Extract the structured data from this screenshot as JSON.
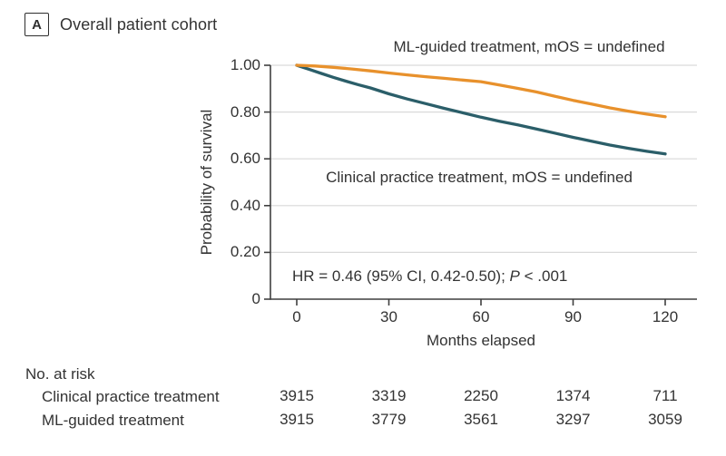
{
  "panel": {
    "label": "A",
    "title": "Overall patient cohort"
  },
  "chart_data": {
    "type": "line",
    "title": "Overall patient cohort",
    "xlabel": "Months elapsed",
    "ylabel": "Probability of survival",
    "xlim": [
      0,
      120
    ],
    "ylim": [
      0,
      1.0
    ],
    "grid": "horizontal",
    "xticks": [
      {
        "label": "0",
        "value": 0
      },
      {
        "label": "30",
        "value": 30
      },
      {
        "label": "60",
        "value": 60
      },
      {
        "label": "90",
        "value": 90
      },
      {
        "label": "120",
        "value": 120
      }
    ],
    "yticks": [
      {
        "label": "1.00",
        "value": 1.0
      },
      {
        "label": "0.80",
        "value": 0.8
      },
      {
        "label": "0.60",
        "value": 0.6
      },
      {
        "label": "0.40",
        "value": 0.4
      },
      {
        "label": "0.20",
        "value": 0.2
      },
      {
        "label": "0",
        "value": 0
      }
    ],
    "series": [
      {
        "name": "ML-guided treatment",
        "label": "ML-guided treatment, mOS = undefined",
        "color": "#E8912C",
        "x": [
          0,
          6,
          12,
          18,
          24,
          30,
          36,
          42,
          48,
          54,
          60,
          66,
          72,
          78,
          84,
          90,
          96,
          102,
          108,
          114,
          120
        ],
        "y": [
          1.0,
          0.997,
          0.991,
          0.984,
          0.976,
          0.967,
          0.959,
          0.951,
          0.944,
          0.937,
          0.93,
          0.916,
          0.901,
          0.886,
          0.868,
          0.85,
          0.834,
          0.818,
          0.804,
          0.791,
          0.78
        ]
      },
      {
        "name": "Clinical practice treatment",
        "label": "Clinical practice treatment, mOS = undefined",
        "color": "#2B5E69",
        "x": [
          0,
          4,
          8,
          12,
          16,
          20,
          24,
          30,
          36,
          42,
          48,
          54,
          60,
          66,
          72,
          78,
          84,
          90,
          96,
          102,
          108,
          114,
          120
        ],
        "y": [
          1.0,
          0.983,
          0.965,
          0.948,
          0.932,
          0.917,
          0.903,
          0.878,
          0.856,
          0.836,
          0.816,
          0.797,
          0.778,
          0.761,
          0.745,
          0.728,
          0.71,
          0.692,
          0.675,
          0.659,
          0.645,
          0.632,
          0.621
        ]
      }
    ],
    "annotation": {
      "hr_prefix": "HR = 0.46 (95% CI, 0.42-0.50); ",
      "p_label": "P",
      "p_value": " < .001"
    }
  },
  "risk_table": {
    "header": "No. at risk",
    "rows": [
      {
        "label": "Clinical practice treatment",
        "values": [
          "3915",
          "3319",
          "2250",
          "1374",
          "711"
        ]
      },
      {
        "label": "ML-guided treatment",
        "values": [
          "3915",
          "3779",
          "3561",
          "3297",
          "3059"
        ]
      }
    ]
  },
  "colors": {
    "ml_curve": "#E8912C",
    "clinical_curve": "#2B5E69",
    "gridline": "#d9d9d9",
    "axis": "#3f3f3f",
    "text": "#333333"
  }
}
